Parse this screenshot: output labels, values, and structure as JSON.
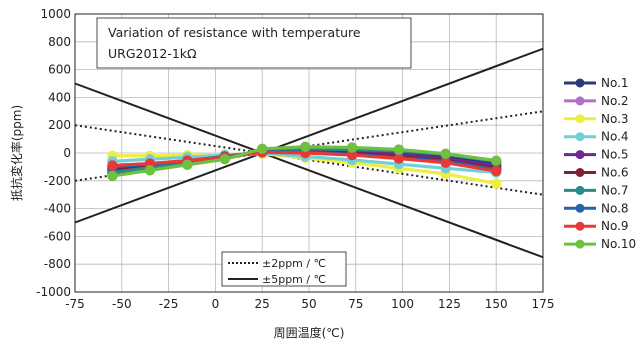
{
  "chart_data": {
    "type": "line",
    "title_lines": [
      "Variation of resistance with temperature",
      "URG2012-1kΩ"
    ],
    "xlabel": "周囲温度(℃)",
    "ylabel": "抵抗変化率(ppm)",
    "xlim": [
      -75,
      175
    ],
    "ylim": [
      -1000,
      1000
    ],
    "xticks": [
      "-75",
      "-50",
      "-25",
      "0",
      "25",
      "50",
      "75",
      "100",
      "125",
      "150",
      "175"
    ],
    "yticks": [
      "1000",
      "800",
      "600",
      "400",
      "200",
      "0",
      "-200",
      "-400",
      "-600",
      "-800",
      "-1000"
    ],
    "legend_position": "right",
    "x": [
      -55,
      -35,
      -15,
      5,
      25,
      48,
      73,
      98,
      123,
      150
    ],
    "series": [
      {
        "name": "No.1",
        "color": "#2a3a7a",
        "values": [
          -150,
          -110,
          -75,
          -40,
          15,
          25,
          20,
          10,
          -20,
          -70
        ]
      },
      {
        "name": "No.2",
        "color": "#b070c8",
        "values": [
          -130,
          -100,
          -70,
          -35,
          15,
          15,
          5,
          -20,
          -50,
          -100
        ]
      },
      {
        "name": "No.3",
        "color": "#eeee40",
        "values": [
          -20,
          -20,
          -15,
          -10,
          -5,
          -35,
          -70,
          -110,
          -150,
          -220
        ]
      },
      {
        "name": "No.4",
        "color": "#70d0d8",
        "values": [
          -60,
          -45,
          -30,
          -15,
          0,
          -25,
          -50,
          -80,
          -110,
          -140
        ]
      },
      {
        "name": "No.5",
        "color": "#6a2a90",
        "values": [
          -120,
          -95,
          -70,
          -35,
          15,
          20,
          10,
          -10,
          -40,
          -90
        ]
      },
      {
        "name": "No.6",
        "color": "#802030",
        "values": [
          -110,
          -90,
          -65,
          -30,
          10,
          10,
          0,
          -25,
          -55,
          -110
        ]
      },
      {
        "name": "No.7",
        "color": "#2a8a8a",
        "values": [
          -140,
          -105,
          -75,
          -40,
          20,
          30,
          25,
          15,
          -10,
          -60
        ]
      },
      {
        "name": "No.8",
        "color": "#2a60b0",
        "values": [
          -100,
          -80,
          -55,
          -25,
          10,
          5,
          -10,
          -35,
          -60,
          -120
        ]
      },
      {
        "name": "No.9",
        "color": "#e83838",
        "values": [
          -90,
          -75,
          -55,
          -30,
          5,
          0,
          -15,
          -40,
          -70,
          -130
        ]
      },
      {
        "name": "No.10",
        "color": "#70c040",
        "values": [
          -165,
          -125,
          -85,
          -45,
          30,
          45,
          40,
          25,
          -5,
          -55
        ]
      }
    ],
    "reference_lines": [
      {
        "name": "±2ppm / ℃",
        "style": "dotted",
        "ppm_per_c": 2,
        "ref_temp": 25
      },
      {
        "name": "±5ppm / ℃",
        "style": "solid",
        "ppm_per_c": 5,
        "ref_temp": 25
      }
    ],
    "grid": true
  }
}
